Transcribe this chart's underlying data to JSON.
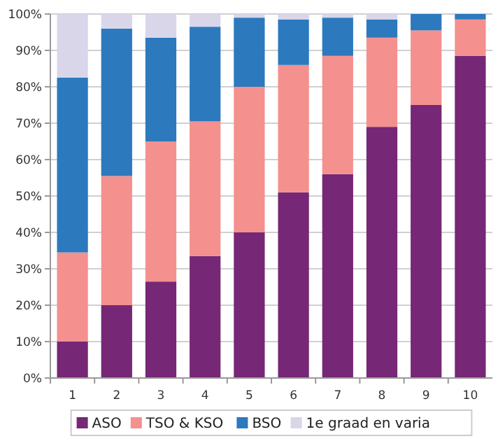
{
  "chart_data": {
    "type": "bar",
    "stacked": true,
    "categories": [
      "1",
      "2",
      "3",
      "4",
      "5",
      "6",
      "7",
      "8",
      "9",
      "10"
    ],
    "series": [
      {
        "name": "ASO",
        "color": "#762776",
        "values": [
          10,
          20,
          26.5,
          33.5,
          40,
          51,
          56,
          69,
          75,
          88.5
        ]
      },
      {
        "name": "TSO & KSO",
        "color": "#f4908e",
        "values": [
          24.5,
          35.5,
          38.5,
          37,
          40,
          35,
          32.5,
          24.5,
          20.5,
          10
        ]
      },
      {
        "name": "BSO",
        "color": "#2c79be",
        "values": [
          48,
          40.5,
          28.5,
          26,
          19,
          12.5,
          10.5,
          5,
          4.5,
          1.5
        ]
      },
      {
        "name": "1e graad en varia",
        "color": "#d9d6ea",
        "values": [
          17.5,
          4,
          6.5,
          3.5,
          1,
          1.5,
          1,
          1.5,
          0,
          null
        ]
      }
    ],
    "ylim": [
      0,
      100
    ],
    "yticks": [
      {
        "value": 0,
        "label": "0%"
      },
      {
        "value": 10,
        "label": "10%"
      },
      {
        "value": 20,
        "label": "20%"
      },
      {
        "value": 30,
        "label": "30%"
      },
      {
        "value": 40,
        "label": "40%"
      },
      {
        "value": 50,
        "label": "50%"
      },
      {
        "value": 60,
        "label": "60%"
      },
      {
        "value": 70,
        "label": "70%"
      },
      {
        "value": 80,
        "label": "80%"
      },
      {
        "value": 90,
        "label": "90%"
      },
      {
        "value": 100,
        "label": "100%"
      }
    ],
    "grid": "y",
    "legend": "bottom"
  }
}
